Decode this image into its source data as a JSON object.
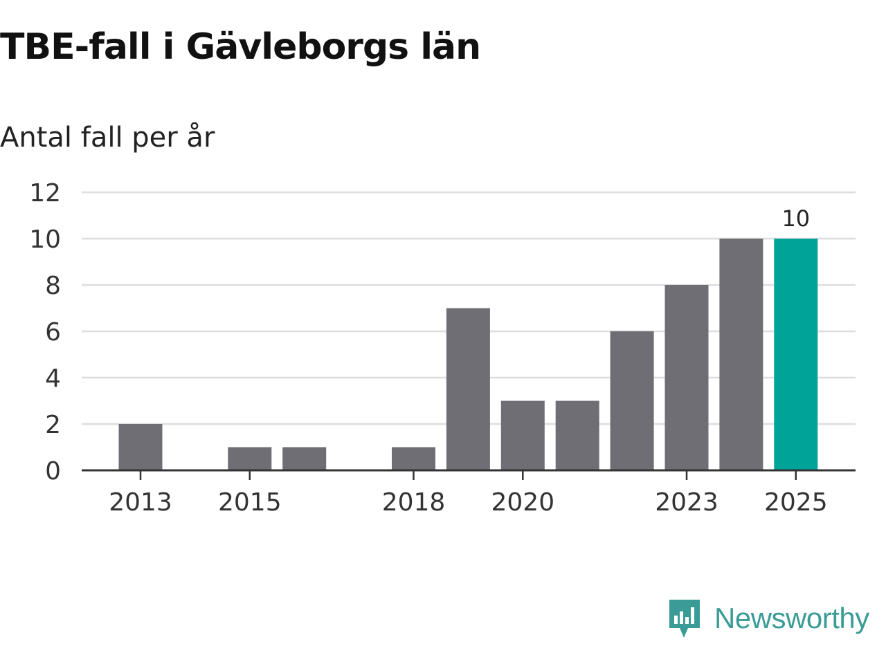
{
  "title": "TBE-fall i Gävleborgs län",
  "subtitle": "Antal fall per år",
  "brand": {
    "name": "Newsworthy",
    "icon": "newsworthy-logo-icon"
  },
  "colors": {
    "bar": "#6f6e74",
    "highlight": "#00a398",
    "grid": "#dddddd",
    "axis": "#333333",
    "brand": "#3b9c97"
  },
  "chart_data": {
    "type": "bar",
    "title": "TBE-fall i Gävleborgs län",
    "subtitle": "Antal fall per år",
    "xlabel": "",
    "ylabel": "",
    "categories": [
      2013,
      2014,
      2015,
      2016,
      2017,
      2018,
      2019,
      2020,
      2021,
      2022,
      2023,
      2024,
      2025
    ],
    "values": [
      2,
      0,
      1,
      1,
      0,
      1,
      7,
      3,
      3,
      6,
      8,
      10,
      10
    ],
    "highlight_category": 2025,
    "xticks": [
      2013,
      2015,
      2018,
      2020,
      2023,
      2025
    ],
    "yticks": [
      0,
      2,
      4,
      6,
      8,
      10,
      12
    ],
    "ylim": [
      0,
      12
    ],
    "grid": true,
    "data_labels": [
      {
        "category": 2025,
        "text": "10"
      }
    ]
  }
}
